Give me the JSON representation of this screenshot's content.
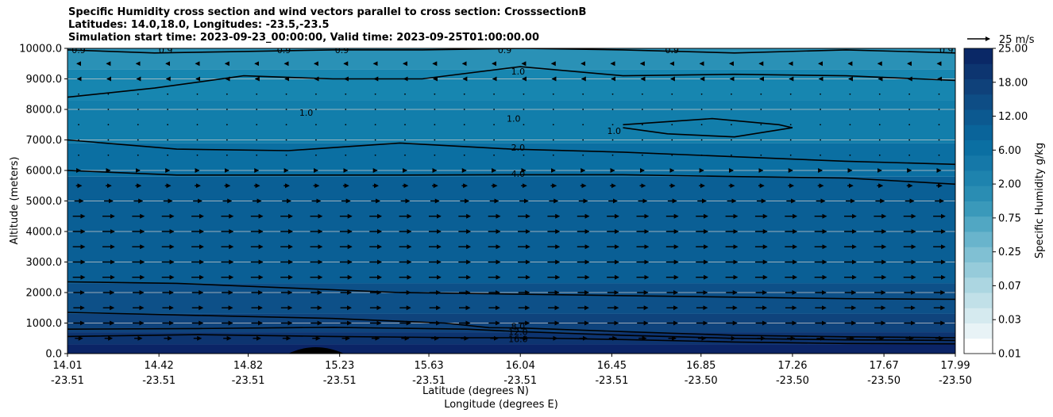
{
  "chart_data": {
    "type": "contour",
    "title_lines": [
      "Specific Humidity cross section and wind vectors parallel to cross section: CrosssectionB",
      "Latitudes: 14.0,18.0, Longitudes: -23.5,-23.5",
      "Simulation start time: 2023-09-23_00:00:00, Valid time: 2023-09-25T01:00:00.00"
    ],
    "ylabel": "Altitude (meters)",
    "xlabel_lat": "Latitude (degrees N)",
    "xlabel_lon": "Longitude (degrees E)",
    "ylim": [
      0,
      10000
    ],
    "yticks": [
      "0.0",
      "1000.0",
      "2000.0",
      "3000.0",
      "4000.0",
      "5000.0",
      "6000.0",
      "7000.0",
      "8000.0",
      "9000.0",
      "10000.0"
    ],
    "xticks": [
      {
        "lat": "14.01",
        "lon": "-23.51"
      },
      {
        "lat": "14.42",
        "lon": "-23.51"
      },
      {
        "lat": "14.82",
        "lon": "-23.51"
      },
      {
        "lat": "15.23",
        "lon": "-23.51"
      },
      {
        "lat": "15.63",
        "lon": "-23.51"
      },
      {
        "lat": "16.04",
        "lon": "-23.51"
      },
      {
        "lat": "16.45",
        "lon": "-23.51"
      },
      {
        "lat": "16.85",
        "lon": "-23.50"
      },
      {
        "lat": "17.26",
        "lon": "-23.50"
      },
      {
        "lat": "17.67",
        "lon": "-23.50"
      },
      {
        "lat": "17.99",
        "lon": "-23.50"
      }
    ],
    "colorbar": {
      "label": "Specific Humidity g/kg",
      "levels": [
        0.01,
        0.02,
        0.03,
        0.05,
        0.07,
        0.1,
        0.25,
        0.5,
        0.75,
        1.0,
        1.5,
        2.0,
        3.0,
        4.0,
        6.0,
        8.0,
        12.0,
        16.0,
        18.0,
        20.0,
        25.0
      ],
      "tick_labels": [
        "0.01",
        "0.03",
        "0.07",
        "0.25",
        "0.75",
        "2.00",
        "6.00",
        "12.00",
        "18.00",
        "25.00"
      ],
      "colors": [
        "#ffffff",
        "#e8f3f6",
        "#d5eaef",
        "#c1e0e8",
        "#acd6e1",
        "#96cbda",
        "#80c0d3",
        "#69b4cc",
        "#51a7c3",
        "#3a99ba",
        "#2a8db3",
        "#1e83ae",
        "#1578a8",
        "#0b6fa2",
        "#0a649a",
        "#0c5990",
        "#0e4d85",
        "#0f417a",
        "#0d3570",
        "#0a2866"
      ]
    },
    "fill_bands": [
      {
        "bottom": 0,
        "top": 300,
        "color": "#0b2466"
      },
      {
        "bottom": 300,
        "top": 700,
        "color": "#0d3470"
      },
      {
        "bottom": 700,
        "top": 1300,
        "color": "#0f437c"
      },
      {
        "bottom": 1300,
        "top": 2300,
        "color": "#0d5088"
      },
      {
        "bottom": 2300,
        "top": 5800,
        "color": "#0a5f95"
      },
      {
        "bottom": 5800,
        "top": 6900,
        "color": "#0b6fa2"
      },
      {
        "bottom": 6900,
        "top": 8300,
        "color": "#127eab"
      },
      {
        "bottom": 8300,
        "top": 9300,
        "color": "#1786b0"
      },
      {
        "bottom": 9300,
        "top": 10000,
        "color": "#2a91b6"
      }
    ],
    "contours": [
      {
        "level": "16.0",
        "x": [
          14.01,
          14.6,
          15.2,
          15.8,
          16.04,
          16.5,
          17.0,
          17.5,
          17.99
        ],
        "y": [
          560,
          620,
          560,
          520,
          520,
          460,
          380,
          330,
          320
        ]
      },
      {
        "level": "12.0",
        "x": [
          14.01,
          14.6,
          15.2,
          15.8,
          16.04,
          16.5,
          17.0,
          17.5,
          17.99
        ],
        "y": [
          800,
          820,
          860,
          800,
          720,
          600,
          500,
          450,
          430
        ]
      },
      {
        "level": "8.0",
        "x": [
          14.01,
          14.6,
          15.2,
          15.7,
          15.9,
          16.04,
          16.5,
          17.0,
          17.5,
          17.99
        ],
        "y": [
          1350,
          1250,
          1150,
          1000,
          850,
          840,
          720,
          600,
          550,
          520
        ]
      },
      {
        "level": "6.0",
        "x": [
          14.01,
          14.5,
          15.0,
          15.5,
          16.0,
          16.5,
          17.0,
          17.5,
          17.99
        ],
        "y": [
          2350,
          2300,
          2150,
          2000,
          1950,
          1900,
          1850,
          1800,
          1780
        ]
      },
      {
        "level": "4.0",
        "x": [
          14.01,
          14.5,
          15.0,
          15.5,
          16.0,
          16.5,
          17.0,
          17.5,
          17.99
        ],
        "y": [
          6000,
          5850,
          5850,
          5850,
          5860,
          5860,
          5800,
          5750,
          5550
        ]
      },
      {
        "level": "2.0",
        "x": [
          14.01,
          14.5,
          15.0,
          15.5,
          16.0,
          16.5,
          17.0,
          17.5,
          17.99
        ],
        "y": [
          7000,
          6700,
          6650,
          6900,
          6700,
          6600,
          6450,
          6300,
          6200
        ]
      },
      {
        "level": "1.0",
        "x": [
          14.01,
          14.4,
          14.8,
          15.2,
          15.6,
          16.04,
          16.5,
          17.0,
          17.5,
          17.99
        ],
        "y": [
          8400,
          8700,
          9100,
          9000,
          9000,
          9400,
          9100,
          9150,
          9100,
          8950
        ]
      },
      {
        "level": "0.9",
        "x": [
          14.01,
          14.4,
          14.8,
          15.2,
          15.6,
          16.04,
          16.5,
          17.0,
          17.5,
          17.99
        ],
        "y": [
          9950,
          9850,
          9900,
          9950,
          9950,
          10000,
          9950,
          9850,
          9950,
          9850
        ]
      },
      {
        "level": "1.0",
        "x": [
          16.5,
          16.9,
          17.2,
          17.26,
          17.0,
          16.7,
          16.5
        ],
        "y": [
          7500,
          7700,
          7500,
          7400,
          7100,
          7200,
          7400
        ]
      }
    ],
    "contour_labels": [
      {
        "text": "16.0",
        "x": 16.03,
        "y": 480
      },
      {
        "text": "12.0",
        "x": 16.03,
        "y": 720
      },
      {
        "text": "8.0",
        "x": 16.03,
        "y": 900
      },
      {
        "text": "4.0",
        "x": 16.03,
        "y": 5900
      },
      {
        "text": "2.0",
        "x": 16.03,
        "y": 6750
      },
      {
        "text": "1.0",
        "x": 16.03,
        "y": 9250
      },
      {
        "text": "1.0",
        "x": 15.08,
        "y": 7900
      },
      {
        "text": "1.0",
        "x": 16.01,
        "y": 7700
      },
      {
        "text": "1.0",
        "x": 16.46,
        "y": 7300
      },
      {
        "text": "0.9",
        "x": 14.06,
        "y": 9950
      },
      {
        "text": "0.9",
        "x": 14.45,
        "y": 9950
      },
      {
        "text": "0.9",
        "x": 14.98,
        "y": 9950
      },
      {
        "text": "0.9",
        "x": 15.24,
        "y": 9950
      },
      {
        "text": "0.9",
        "x": 15.97,
        "y": 9950
      },
      {
        "text": "0.9",
        "x": 16.72,
        "y": 9950
      },
      {
        "text": "0.9",
        "x": 17.95,
        "y": 9950
      }
    ],
    "wind_vectors": {
      "lat_step": 0.133,
      "altitudes": [
        500,
        1000,
        1500,
        2000,
        2500,
        3000,
        3500,
        4000,
        4500,
        5000,
        5500,
        6000,
        6500,
        7000,
        7500,
        8000,
        8500,
        9000,
        9500
      ],
      "u_profile_ms": [
        14,
        20,
        20,
        20,
        22,
        22,
        22,
        22,
        22,
        16,
        10,
        6,
        2,
        1,
        1,
        1,
        1,
        -4,
        -6
      ],
      "key_label": "25 m/s"
    }
  }
}
